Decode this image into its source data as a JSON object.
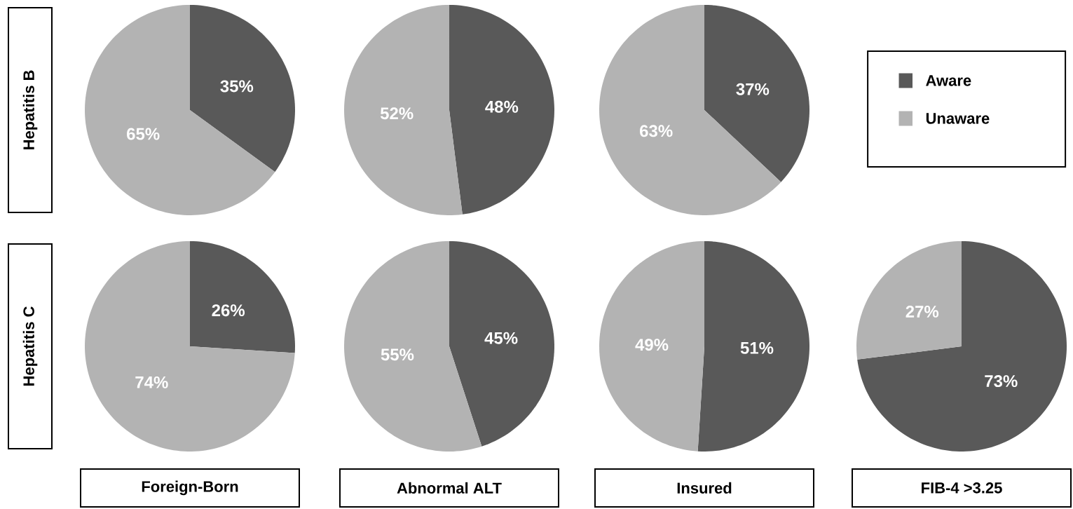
{
  "chart_data": [
    {
      "type": "pie",
      "ylabel": "Hepatitis B",
      "categories": [
        null,
        null
      ],
      "values": [
        35,
        65
      ],
      "colors": [
        "#595959",
        "#b3b3b3"
      ],
      "value_labels": [
        "35%",
        "65%"
      ]
    },
    {
      "type": "pie",
      "categories": [
        null,
        null
      ],
      "values": [
        48,
        52
      ],
      "colors": [
        "#595959",
        "#b3b3b3"
      ],
      "value_labels": [
        "48%",
        "52%"
      ]
    },
    {
      "type": "pie",
      "categories": [
        "Aware",
        "Unaware"
      ],
      "values": [
        37,
        63
      ],
      "colors": [
        "#595959",
        "#b3b3b3"
      ],
      "value_labels": [
        "37%",
        "63%"
      ],
      "legend": "right"
    },
    {
      "type": "pie",
      "ylabel": "Hepatitis C",
      "xlabel": "Foreign-Born",
      "categories": [
        null,
        null
      ],
      "values": [
        26,
        74
      ],
      "colors": [
        "#595959",
        "#b3b3b3"
      ],
      "value_labels": [
        "26%",
        "74%"
      ]
    },
    {
      "type": "pie",
      "xlabel": "Abnormal ALT",
      "categories": [
        null,
        null
      ],
      "values": [
        45,
        55
      ],
      "colors": [
        "#595959",
        "#b3b3b3"
      ],
      "value_labels": [
        "45%",
        "55%"
      ]
    },
    {
      "type": "pie",
      "xlabel": "Insured",
      "categories": [
        null,
        null
      ],
      "values": [
        51,
        49
      ],
      "colors": [
        "#595959",
        "#b3b3b3"
      ],
      "value_labels": [
        "51%",
        "49%"
      ]
    },
    {
      "type": "pie",
      "xlabel": "FIB-4 >3.25",
      "categories": [
        null,
        null
      ],
      "values": [
        73,
        27
      ],
      "colors": [
        "#595959",
        "#b3b3b3"
      ],
      "value_labels": [
        "73%",
        "27%"
      ]
    }
  ]
}
